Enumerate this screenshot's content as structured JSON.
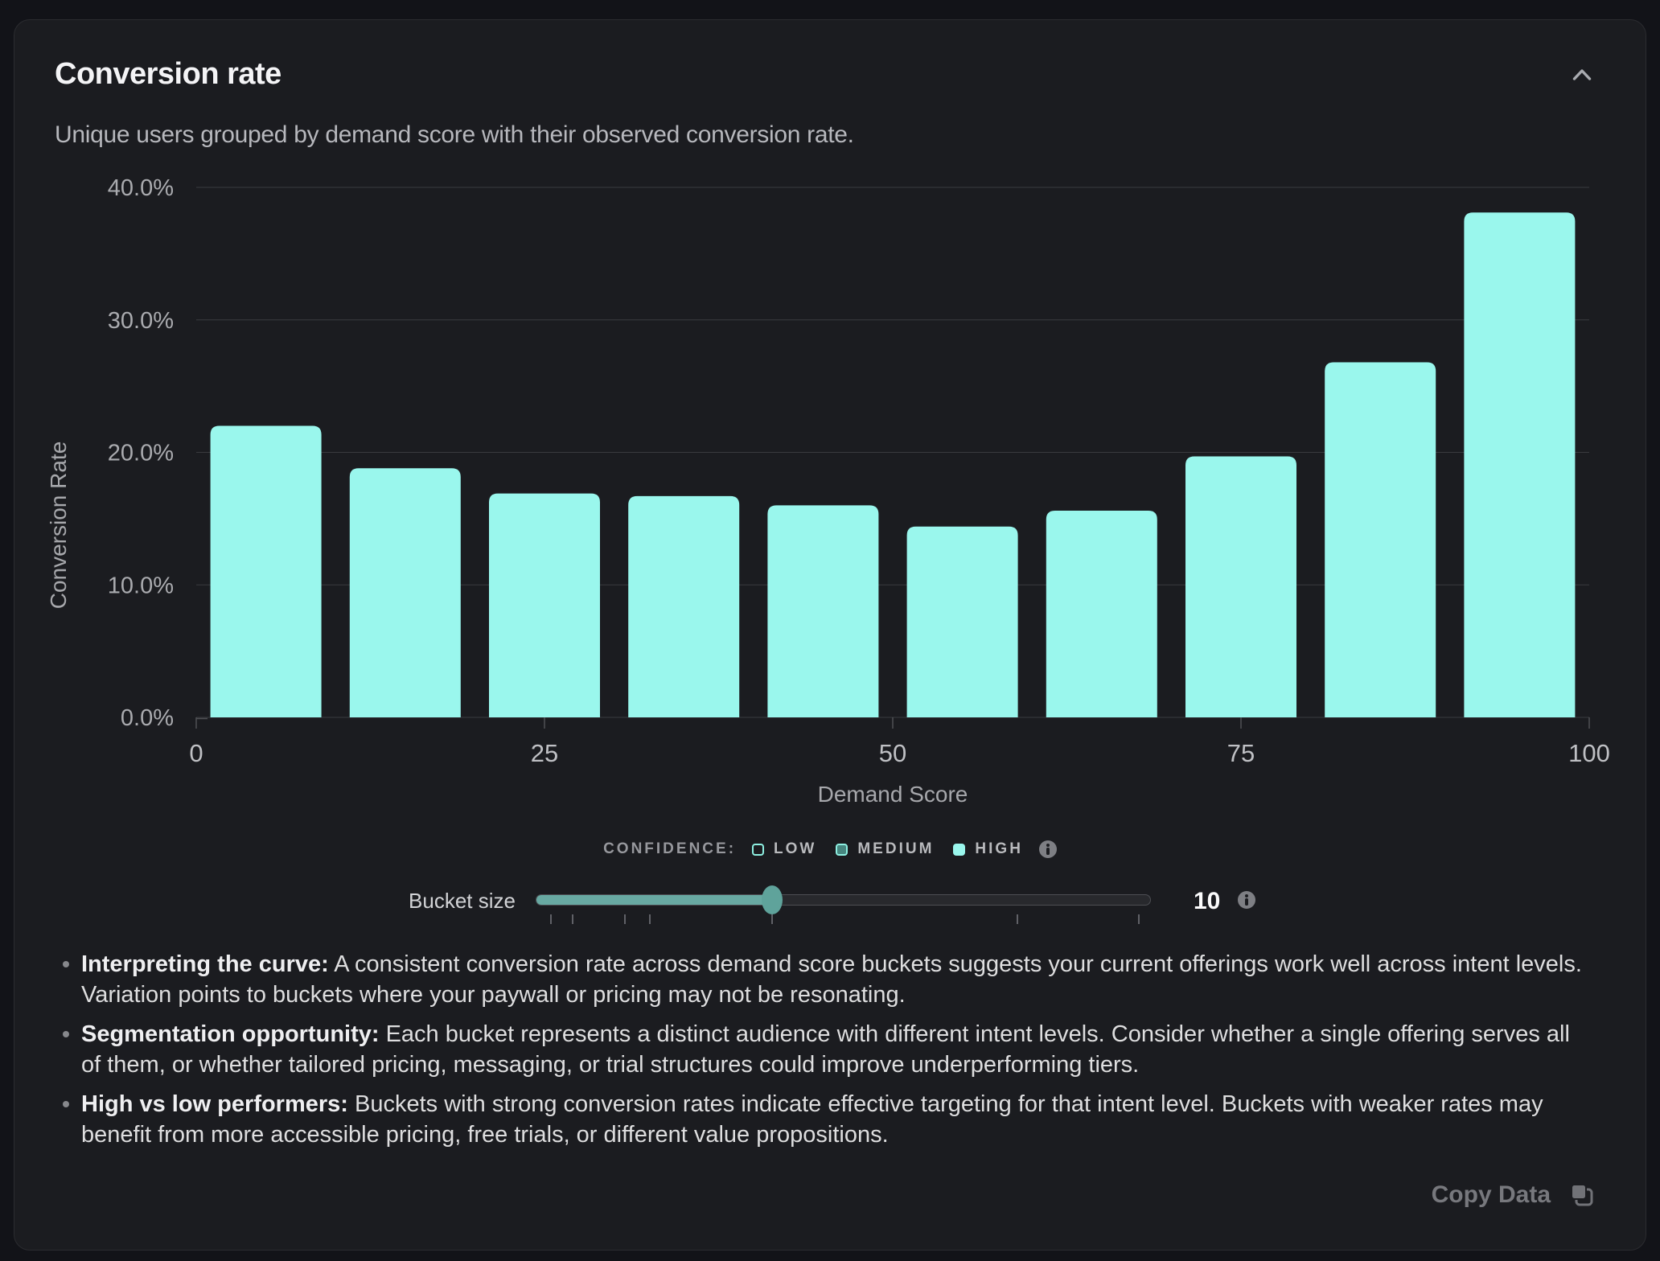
{
  "card": {
    "title": "Conversion rate",
    "subtitle": "Unique users grouped by demand score with their observed conversion rate."
  },
  "chart_data": {
    "type": "bar",
    "title": "Conversion rate",
    "xlabel": "Demand Score",
    "ylabel": "Conversion Rate",
    "x_ticks": [
      0,
      25,
      50,
      75,
      100
    ],
    "y_tick_labels": [
      "0.0%",
      "10.0%",
      "20.0%",
      "30.0%",
      "40.0%"
    ],
    "ylim": [
      0,
      40
    ],
    "x_range": [
      0,
      100
    ],
    "bucket_size": 10,
    "categories": [
      "0-10",
      "10-20",
      "20-30",
      "30-40",
      "40-50",
      "50-60",
      "60-70",
      "70-80",
      "80-90",
      "90-100"
    ],
    "values": [
      22.0,
      18.8,
      16.9,
      16.7,
      16.0,
      14.4,
      15.6,
      19.7,
      26.8,
      38.1
    ],
    "bar_color": "#9af7ed",
    "grid": true,
    "legend_position": "bottom"
  },
  "legend": {
    "label": "CONFIDENCE:",
    "items": [
      {
        "label": "LOW",
        "style": "outline"
      },
      {
        "label": "MEDIUM",
        "style": "half"
      },
      {
        "label": "HIGH",
        "style": "filled"
      }
    ]
  },
  "slider": {
    "label": "Bucket size",
    "value": "10",
    "fraction": 0.384,
    "ticks": [
      0.0235,
      0.0588,
      0.1438,
      0.1843,
      0.383,
      0.7817,
      0.979
    ]
  },
  "insights": [
    {
      "lead": "Interpreting the curve:",
      "text": "A consistent conversion rate across demand score buckets suggests your current offerings work well across intent levels. Variation points to buckets where your paywall or pricing may not be resonating."
    },
    {
      "lead": "Segmentation opportunity:",
      "text": "Each bucket represents a distinct audience with different intent levels. Consider whether a single offering serves all of them, or whether tailored pricing, messaging, or trial structures could improve underperforming tiers."
    },
    {
      "lead": "High vs low performers:",
      "text": "Buckets with strong conversion rates indicate effective targeting for that intent level. Buckets with weaker rates may benefit from more accessible pricing, free trials, or different value propositions."
    }
  ],
  "footer": {
    "copy_label": "Copy Data"
  },
  "colors": {
    "bar": "#9af7ed",
    "slider_fill": "#68a9a2",
    "card_bg": "#1b1c20",
    "page_bg": "#121318",
    "grid": "#3a3b3f"
  }
}
